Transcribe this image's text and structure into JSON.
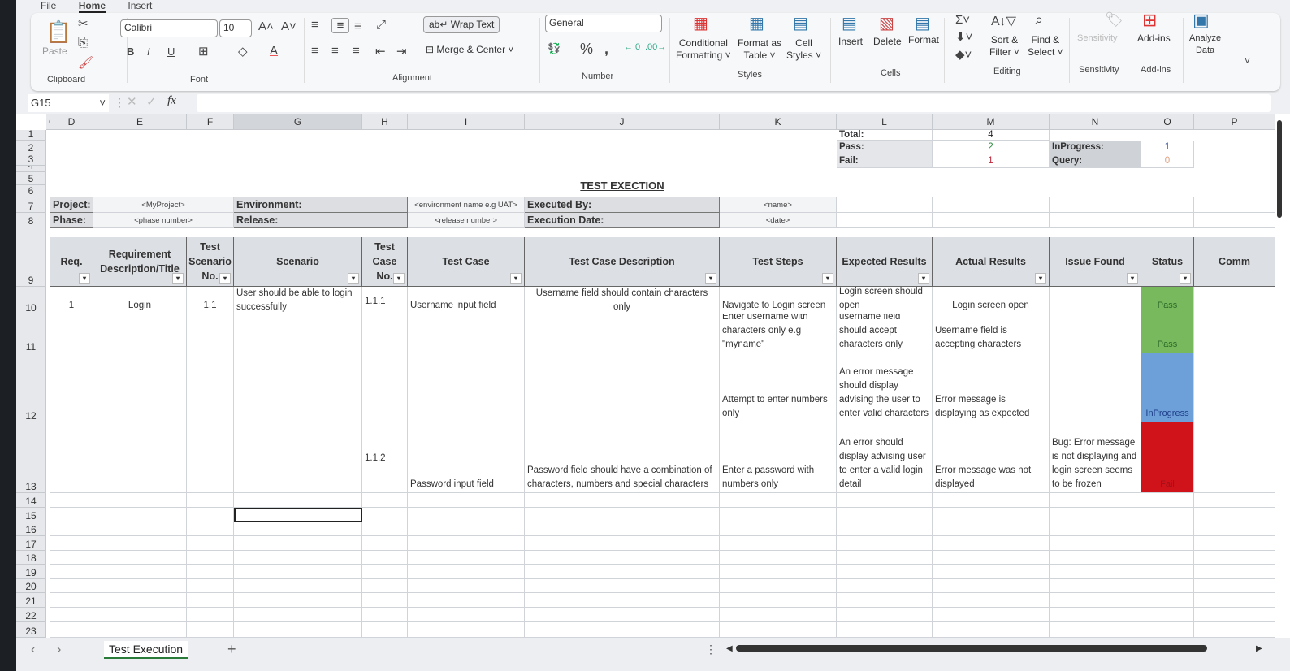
{
  "ribbon": {
    "tabs": [
      "File",
      "Home",
      "Insert"
    ],
    "clipboard": {
      "paste": "Paste",
      "label": "Clipboard"
    },
    "font": {
      "name": "Calibri",
      "size": "10",
      "label": "Font"
    },
    "alignment": {
      "wrap": "Wrap Text",
      "merge": "Merge & Center",
      "label": "Alignment"
    },
    "number": {
      "format": "General",
      "label": "Number"
    },
    "styles": {
      "cond": "Conditional\nFormatting ˅",
      "table": "Format as\nTable ˅",
      "cell": "Cell\nStyles ˅",
      "label": "Styles"
    },
    "cells": {
      "insert": "Insert",
      "delete": "Delete",
      "format": "Format",
      "label": "Cells"
    },
    "editing": {
      "sort": "Sort &\nFilter ˅",
      "find": "Find &\nSelect ˅",
      "label": "Editing"
    },
    "sensitivity": {
      "button": "Sensitivity",
      "label": "Sensitivity"
    },
    "addins": {
      "button": "Add-ins",
      "label": "Add-ins"
    },
    "analyze": {
      "button": "Analyze\nData"
    }
  },
  "formula_bar": {
    "name_box": "G15",
    "fx": "fx",
    "value": ""
  },
  "columns": [
    "C",
    "D",
    "E",
    "F",
    "G",
    "H",
    "I",
    "J",
    "K",
    "L",
    "M",
    "N",
    "O",
    "P"
  ],
  "rows": [
    "1",
    "2",
    "3",
    "4",
    "5",
    "6",
    "7",
    "8",
    "9",
    "10",
    "11",
    "12",
    "13",
    "14",
    "15",
    "16",
    "17",
    "18",
    "19",
    "20",
    "21",
    "22",
    "23"
  ],
  "summary": {
    "total_label": "Total:",
    "total": "4",
    "pass_label": "Pass:",
    "pass": "2",
    "fail_label": "Fail:",
    "fail": "1",
    "inprogress_label": "InProgress:",
    "inprogress": "1",
    "query_label": "Query:",
    "query": "0"
  },
  "title": "TEST EXECTION",
  "info": {
    "project_label": "Project:",
    "project": "<MyProject>",
    "phase_label": "Phase:",
    "phase": "<phase number>",
    "env_label": "Environment:",
    "env": "<environment name e.g UAT>",
    "release_label": "Release:",
    "release": "<release number>",
    "executed_by_label": "Executed By:",
    "executed_by": "<name>",
    "exec_date_label": "Execution Date:",
    "exec_date": "<date>"
  },
  "headers": [
    "Req.",
    "Requirement Description/Title",
    "Test Scenario No.",
    "Scenario",
    "Test Case No.",
    "Test Case",
    "Test Case Description",
    "Test Steps",
    "Expected Results",
    "Actual Results",
    "Issue Found",
    "Status",
    "Comm"
  ],
  "test_rows": [
    {
      "req": "1",
      "title": "Login",
      "scen_no": "1.1",
      "scenario": "User should be able to login successfully",
      "case_no": "1.1.1",
      "case": "Username input field",
      "desc": "Username field should contain characters only",
      "steps": "Navigate to Login screen",
      "expected": "Login screen should open",
      "actual": "Login screen open",
      "issue": "",
      "status": "Pass"
    },
    {
      "req": "",
      "title": "",
      "scen_no": "",
      "scenario": "",
      "case_no": "",
      "case": "",
      "desc": "",
      "steps": "Enter username with characters only e.g \"myname\"",
      "expected": "username field should accept characters only",
      "actual": "Username field is accepting characters",
      "issue": "",
      "status": "Pass"
    },
    {
      "req": "",
      "title": "",
      "scen_no": "",
      "scenario": "",
      "case_no": "",
      "case": "",
      "desc": "",
      "steps": "Attempt to enter numbers only",
      "expected": "An error message should display advising the user to enter valid characters",
      "actual": "Error message is displaying as expected",
      "issue": "",
      "status": "InProgress"
    },
    {
      "req": "",
      "title": "",
      "scen_no": "",
      "scenario": "",
      "case_no": "1.1.2",
      "case": "Password input field",
      "desc": "Password field should have a combination of characters, numbers and special characters",
      "steps": "Enter a password with numbers only",
      "expected": "An error should display advising user to enter a valid login detail",
      "actual": "Error message was not displayed",
      "issue": "Bug: Error message is not displaying and login screen seems to be frozen",
      "status": "Fail"
    }
  ],
  "status_colors": {
    "Pass": "#79b95e",
    "InProgress": "#6d9fd8",
    "Fail": "#d0131b"
  },
  "sheet_tabs": [
    "Test Execution"
  ]
}
